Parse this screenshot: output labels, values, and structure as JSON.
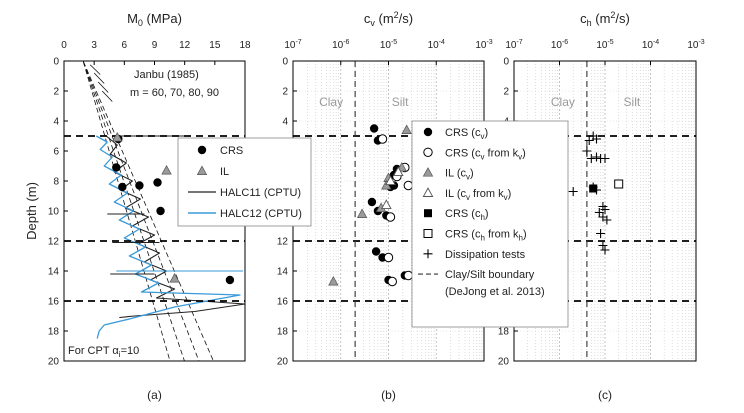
{
  "chart_data": [
    {
      "type": "scatter",
      "panel_letter": "(a)",
      "title": "M0 (MPa)",
      "title_main": "M",
      "title_sub": "0",
      "title_rest": " (MPa)",
      "ylabel": "Depth (m)",
      "xlim": [
        0,
        18
      ],
      "ylim": [
        0,
        20
      ],
      "x_ticks": [
        "0",
        "3",
        "6",
        "9",
        "12",
        "15",
        "18"
      ],
      "y_ticks": [
        "0",
        "2",
        "4",
        "6",
        "8",
        "10",
        "12",
        "14",
        "16",
        "18",
        "20"
      ],
      "boundaries_depth": [
        5,
        12,
        16
      ],
      "annotation_title": "Janbu (1985)",
      "annotation_m": "m = 60, 70, 80, 90",
      "annotation_m_values": [
        60,
        70,
        80,
        90
      ],
      "footnote": "For CPT αi=10",
      "footnote_main": "For CPT α",
      "footnote_sub": "i",
      "footnote_rest": "=10",
      "legend": [
        "CRS",
        "IL",
        "HALC11 (CPTU)",
        "HALC12 (CPTU)"
      ],
      "series": [
        {
          "name": "CRS",
          "marker": "filled-circle",
          "points": [
            [
              5.4,
              5.2
            ],
            [
              5.2,
              7.1
            ],
            [
              5.8,
              8.4
            ],
            [
              7.5,
              8.3
            ],
            [
              9.3,
              8.1
            ],
            [
              9.6,
              10.0
            ],
            [
              16.5,
              14.6
            ]
          ]
        },
        {
          "name": "IL",
          "marker": "gray-triangle",
          "points": [
            [
              5.3,
              5.1
            ],
            [
              10.2,
              7.3
            ],
            [
              11.0,
              14.5
            ]
          ]
        },
        {
          "name": "HALC11 (CPTU)",
          "marker": "line-black",
          "points": [
            [
              4.2,
              5.0
            ],
            [
              5.3,
              5.6
            ],
            [
              4.6,
              6.2
            ],
            [
              6.2,
              6.8
            ],
            [
              5.0,
              7.4
            ],
            [
              6.8,
              8.0
            ],
            [
              5.6,
              8.6
            ],
            [
              7.6,
              9.2
            ],
            [
              6.1,
              9.8
            ],
            [
              8.4,
              10.4
            ],
            [
              6.8,
              11.0
            ],
            [
              9.0,
              11.6
            ],
            [
              7.4,
              12.2
            ],
            [
              9.5,
              12.8
            ],
            [
              8.0,
              13.4
            ],
            [
              10.2,
              14.0
            ],
            [
              8.6,
              14.6
            ],
            [
              11.0,
              15.2
            ],
            [
              9.2,
              15.8
            ],
            [
              18.0,
              16.2
            ],
            [
              13.0,
              16.7
            ],
            [
              7.0,
              17.0
            ],
            [
              5.5,
              17.1
            ]
          ]
        },
        {
          "name": "HALC12 (CPTU)",
          "marker": "line-blue",
          "points": [
            [
              3.2,
              5.0
            ],
            [
              4.3,
              5.4
            ],
            [
              3.6,
              5.9
            ],
            [
              4.8,
              6.4
            ],
            [
              4.0,
              7.0
            ],
            [
              5.7,
              7.6
            ],
            [
              4.5,
              8.2
            ],
            [
              6.3,
              8.8
            ],
            [
              5.0,
              9.4
            ],
            [
              6.9,
              10.0
            ],
            [
              5.5,
              10.6
            ],
            [
              7.5,
              11.2
            ],
            [
              6.0,
              11.8
            ],
            [
              8.1,
              12.4
            ],
            [
              6.5,
              13.0
            ],
            [
              8.7,
              13.6
            ],
            [
              7.1,
              14.2
            ],
            [
              9.4,
              14.8
            ],
            [
              7.7,
              15.4
            ],
            [
              17.5,
              15.6
            ],
            [
              11.0,
              16.4
            ],
            [
              6.5,
              17.2
            ],
            [
              4.0,
              17.6
            ],
            [
              3.5,
              18.0
            ],
            [
              3.3,
              18.5
            ]
          ]
        }
      ]
    },
    {
      "type": "scatter",
      "panel_letter": "(b)",
      "title": "cv (m2/s)",
      "title_main": "c",
      "title_sub": "v",
      "title_rest": " (m",
      "title_sup": "2",
      "title_end": "/s)",
      "xscale": "log",
      "xlim": [
        1e-07,
        0.001
      ],
      "ylim": [
        0,
        20
      ],
      "x_ticks": [
        {
          "m": "10",
          "e": "-7"
        },
        {
          "m": "10",
          "e": "-6"
        },
        {
          "m": "10",
          "e": "-5"
        },
        {
          "m": "10",
          "e": "-4"
        },
        {
          "m": "10",
          "e": "-3"
        }
      ],
      "y_ticks": [
        "0",
        "2",
        "4",
        "6",
        "8",
        "10",
        "12",
        "14",
        "16",
        "18",
        "20"
      ],
      "boundaries_depth": [
        5,
        12,
        16
      ],
      "clay_silt_boundary": 2e-06,
      "zone_labels": [
        "Clay",
        "Silt"
      ],
      "legend": [
        {
          "marker": "filled-circle",
          "label": "CRS (cv)",
          "main": "CRS (c",
          "sub": "v",
          "end": ")"
        },
        {
          "marker": "open-circle",
          "label": "CRS (cv from kv)",
          "main": "CRS (c",
          "sub": "v",
          "mid": " from k",
          "sub2": "v",
          "end": ")"
        },
        {
          "marker": "gray-triangle",
          "label": "IL (cv)",
          "main": "IL  (c",
          "sub": "v",
          "end": ")"
        },
        {
          "marker": "open-triangle",
          "label": "IL (cv from kv)",
          "main": "IL  (c",
          "sub": "v",
          "mid": " from k",
          "sub2": "v",
          "end": ")"
        },
        {
          "marker": "filled-square",
          "label": "CRS (ch)",
          "main": "CRS (c",
          "sub": "h",
          "end": ")"
        },
        {
          "marker": "open-square",
          "label": "CRS (ch from kh)",
          "main": "CRS (c",
          "sub": "h",
          "mid": " from k",
          "sub2": "h",
          "end": ")"
        },
        {
          "marker": "plus",
          "label": "Dissipation tests"
        },
        {
          "marker": "dashed-line",
          "label": "Clay/Silt boundary",
          "label2": "(DeJong et al. 2013)"
        }
      ],
      "series": [
        {
          "name": "CRS (cv)",
          "marker": "filled-circle",
          "points": [
            [
              5e-06,
              4.5
            ],
            [
              6e-06,
              5.3
            ],
            [
              1.5e-05,
              7.2
            ],
            [
              1.3e-05,
              7.6
            ],
            [
              1.1e-05,
              8.4
            ],
            [
              1.3e-05,
              8.3
            ],
            [
              4.5e-06,
              9.4
            ],
            [
              6e-06,
              10.0
            ],
            [
              9e-06,
              10.3
            ],
            [
              5.5e-06,
              12.7
            ],
            [
              7.5e-06,
              13.1
            ],
            [
              2.2e-05,
              14.3
            ],
            [
              1e-05,
              14.6
            ]
          ]
        },
        {
          "name": "CRS (cv from kv)",
          "marker": "open-circle",
          "points": [
            [
              7.5e-06,
              5.2
            ],
            [
              2.2e-05,
              7.1
            ],
            [
              1.5e-05,
              7.7
            ],
            [
              2.6e-05,
              8.3
            ],
            [
              1.1e-05,
              10.4
            ],
            [
              1e-05,
              13.1
            ],
            [
              2.6e-05,
              14.3
            ],
            [
              1.2e-05,
              14.7
            ]
          ]
        },
        {
          "name": "IL (cv)",
          "marker": "gray-triangle",
          "points": [
            [
              2.4e-05,
              4.6
            ],
            [
              1.9e-05,
              7.1
            ],
            [
              1e-05,
              7.8
            ],
            [
              9e-06,
              8.3
            ],
            [
              7e-06,
              9.8
            ],
            [
              2.8e-06,
              10.2
            ],
            [
              7e-07,
              14.7
            ]
          ]
        },
        {
          "name": "IL (cv from kv)",
          "marker": "open-triangle",
          "points": [
            [
              1.6e-05,
              7.4
            ],
            [
              1.1e-05,
              8.0
            ],
            [
              9e-06,
              9.6
            ]
          ]
        }
      ]
    },
    {
      "type": "scatter",
      "panel_letter": "(c)",
      "title": "ch (m2/s)",
      "title_main": "c",
      "title_sub": "h",
      "title_rest": " (m",
      "title_sup": "2",
      "title_end": "/s)",
      "xscale": "log",
      "xlim": [
        1e-07,
        0.001
      ],
      "ylim": [
        0,
        20
      ],
      "x_ticks": [
        {
          "m": "10",
          "e": "-7"
        },
        {
          "m": "10",
          "e": "-6"
        },
        {
          "m": "10",
          "e": "-5"
        },
        {
          "m": "10",
          "e": "-4"
        },
        {
          "m": "10",
          "e": "-3"
        }
      ],
      "y_ticks": [
        "0",
        "2",
        "4",
        "6",
        "8",
        "10",
        "12",
        "14",
        "16",
        "18",
        "20"
      ],
      "boundaries_depth": [
        5,
        12,
        16
      ],
      "clay_silt_boundary": 4e-06,
      "zone_labels": [
        "Clay",
        "Silt"
      ],
      "series": [
        {
          "name": "CRS (ch)",
          "marker": "filled-square",
          "points": [
            [
              5.5e-06,
              8.5
            ]
          ]
        },
        {
          "name": "CRS (ch from kh)",
          "marker": "open-square",
          "points": [
            [
              2e-05,
              8.2
            ]
          ]
        },
        {
          "name": "Dissipation tests",
          "marker": "plus",
          "points": [
            [
              5.5e-06,
              5.0
            ],
            [
              6.5e-06,
              5.2
            ],
            [
              4.5e-06,
              5.3
            ],
            [
              4e-06,
              6.0
            ],
            [
              5e-06,
              6.5
            ],
            [
              6.5e-06,
              6.4
            ],
            [
              8e-06,
              6.5
            ],
            [
              1e-05,
              6.5
            ],
            [
              5.5e-06,
              8.4
            ],
            [
              6.5e-06,
              8.6
            ],
            [
              2e-06,
              8.7
            ],
            [
              9e-06,
              9.7
            ],
            [
              1e-05,
              9.9
            ],
            [
              7.5e-06,
              10.1
            ],
            [
              9e-06,
              10.4
            ],
            [
              1.1e-05,
              10.6
            ],
            [
              8e-06,
              11.5
            ],
            [
              9e-06,
              12.3
            ],
            [
              1e-05,
              12.6
            ]
          ]
        }
      ]
    }
  ]
}
